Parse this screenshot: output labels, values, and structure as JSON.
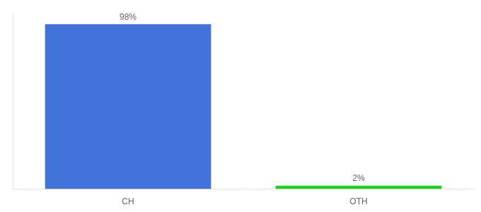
{
  "chart_data": {
    "type": "bar",
    "categories": [
      "CH",
      "OTH"
    ],
    "values": [
      98,
      2
    ],
    "value_labels": [
      "98%",
      "2%"
    ],
    "data_labels": true,
    "colors": [
      "#4472db",
      "#22cc22"
    ],
    "ylim": [
      0,
      104
    ],
    "tick_labels": "x",
    "grid": false
  }
}
